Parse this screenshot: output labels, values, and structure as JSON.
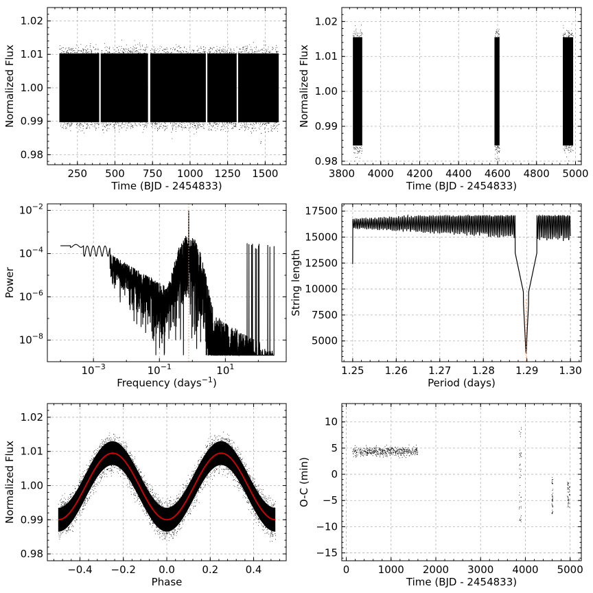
{
  "chart_data": [
    {
      "id": "p1",
      "type": "scatter",
      "xlabel": "Time (BJD - 2454833)",
      "ylabel": "Normalized Flux",
      "xlim": [
        50,
        1640
      ],
      "ylim": [
        0.977,
        1.024
      ],
      "xticks": [
        250,
        500,
        750,
        1000,
        1250,
        1500
      ],
      "xtick_labels": [
        "250",
        "500",
        "750",
        "1000",
        "1250",
        "1500"
      ],
      "yticks": [
        0.98,
        0.99,
        1.0,
        1.01,
        1.02
      ],
      "ytick_labels": [
        "0.98",
        "0.99",
        "1.00",
        "1.01",
        "1.02"
      ],
      "grid": true,
      "series": [
        {
          "segments": [
            [
              130,
              395
            ],
            [
              405,
              720
            ],
            [
              735,
              1105
            ],
            [
              1115,
              1310
            ],
            [
              1320,
              1590
            ]
          ],
          "y_center": 1.0,
          "y_half_range": 0.0103,
          "color": "#000000"
        }
      ]
    },
    {
      "id": "p2",
      "type": "scatter",
      "xlabel": "Time (BJD - 2454833)",
      "ylabel": "Normalized Flux",
      "xlim": [
        3800,
        5030
      ],
      "ylim": [
        0.979,
        1.024
      ],
      "xticks": [
        3800,
        4000,
        4200,
        4400,
        4600,
        4800,
        5000
      ],
      "xtick_labels": [
        "3800",
        "4000",
        "4200",
        "4400",
        "4600",
        "4800",
        "5000"
      ],
      "yticks": [
        0.98,
        0.99,
        1.0,
        1.01,
        1.02
      ],
      "ytick_labels": [
        "0.98",
        "0.99",
        "1.00",
        "1.01",
        "1.02"
      ],
      "grid": true,
      "series": [
        {
          "segments": [
            [
              3857,
              3905
            ],
            [
              4584,
              4610
            ],
            [
              4935,
              4988
            ]
          ],
          "y_center": 1.0,
          "y_half_range": 0.0155,
          "color": "#000000"
        }
      ]
    },
    {
      "id": "p3",
      "type": "line",
      "xlabel": "Frequency (days",
      "xlabel_sup": "−1",
      "xlabel_end": ")",
      "ylabel": "Power",
      "xscale": "log",
      "yscale": "log",
      "xlim": [
        4e-05,
        700
      ],
      "ylim": [
        1e-09,
        0.02
      ],
      "xticks": [
        0.001,
        0.1,
        10
      ],
      "xtick_base": [
        "10",
        "10",
        "10"
      ],
      "xtick_exp": [
        "−3",
        "−1",
        "1"
      ],
      "yticks": [
        1e-08,
        1e-06,
        0.0001,
        0.01
      ],
      "ytick_base": [
        "10",
        "10",
        "10",
        "10"
      ],
      "ytick_exp": [
        "−8",
        "−6",
        "−4",
        "−2"
      ],
      "grid": true,
      "peak_frequency": 0.775,
      "peak_power": 0.009,
      "color": "#000000"
    },
    {
      "id": "p4",
      "type": "line",
      "xlabel": "Period (days)",
      "ylabel": "String length",
      "xlim": [
        1.2475,
        1.3025
      ],
      "ylim": [
        3000,
        18200
      ],
      "xticks": [
        1.25,
        1.26,
        1.27,
        1.28,
        1.29,
        1.3
      ],
      "xtick_labels": [
        "1.25",
        "1.26",
        "1.27",
        "1.28",
        "1.29",
        "1.30"
      ],
      "yticks": [
        5000,
        7500,
        10000,
        12500,
        15000,
        17500
      ],
      "ytick_labels": [
        "5000",
        "7500",
        "10000",
        "12500",
        "15000",
        "17500"
      ],
      "grid": true,
      "min_period": 1.2898,
      "min_string_length": 3700,
      "color": "#000000"
    },
    {
      "id": "p5",
      "type": "scatter",
      "xlabel": "Phase",
      "ylabel": "Normalized Flux",
      "xlim": [
        -0.55,
        0.55
      ],
      "ylim": [
        0.978,
        1.024
      ],
      "xticks": [
        -0.4,
        -0.2,
        0.0,
        0.2,
        0.4
      ],
      "xtick_labels": [
        "−0.4",
        "−0.2",
        "0.0",
        "0.2",
        "0.4"
      ],
      "yticks": [
        0.98,
        0.99,
        1.0,
        1.01,
        1.02
      ],
      "ytick_labels": [
        "0.98",
        "0.99",
        "1.00",
        "1.01",
        "1.02"
      ],
      "grid": true,
      "model": {
        "mean": 0.99975,
        "amplitude": 0.00975,
        "min_phase": 0.0,
        "max_phases": [
          -0.25,
          0.25
        ],
        "color": "#dd0000"
      },
      "scatter_half_width": 0.0035,
      "color": "#000000"
    },
    {
      "id": "p6",
      "type": "scatter",
      "xlabel": "Time (BJD - 2454833)",
      "ylabel": "O-C (min)",
      "xlim": [
        -100,
        5250
      ],
      "ylim": [
        -16.5,
        13.5
      ],
      "xticks": [
        0,
        1000,
        2000,
        3000,
        4000,
        5000
      ],
      "xtick_labels": [
        "0",
        "1000",
        "2000",
        "3000",
        "4000",
        "5000"
      ],
      "yticks": [
        -15,
        -10,
        -5,
        0,
        5,
        10
      ],
      "ytick_labels": [
        "−15",
        "−10",
        "−5",
        "0",
        "5",
        "10"
      ],
      "grid": true,
      "clusters": [
        {
          "x_range": [
            130,
            1590
          ],
          "y_center": 4.4,
          "y_spread": 0.9
        },
        {
          "x_range": [
            3857,
            3905
          ],
          "y_center": 0.0,
          "y_spread": 9.0
        },
        {
          "x_range": [
            4584,
            4610
          ],
          "y_center": -4.0,
          "y_spread": 3.5
        },
        {
          "x_range": [
            4935,
            4988
          ],
          "y_center": -3.8,
          "y_spread": 2.5
        }
      ],
      "color": "#000000"
    }
  ]
}
